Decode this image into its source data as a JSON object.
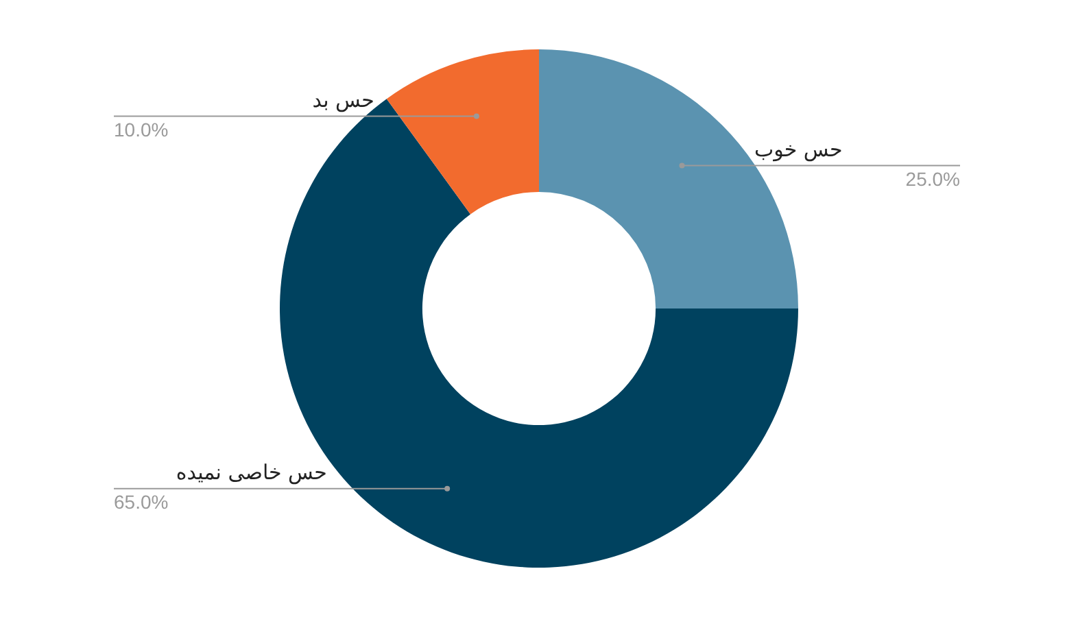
{
  "chart_data": {
    "type": "donut",
    "categories": [
      "حس خوب",
      "حس خاصی نمیده",
      "حس بد"
    ],
    "values": [
      25,
      65,
      10
    ],
    "colors": [
      "#5b93b0",
      "#00425f",
      "#f26b2e"
    ],
    "value_labels": [
      "25.0%",
      "65.0%",
      "10.0%"
    ],
    "legend": false
  }
}
